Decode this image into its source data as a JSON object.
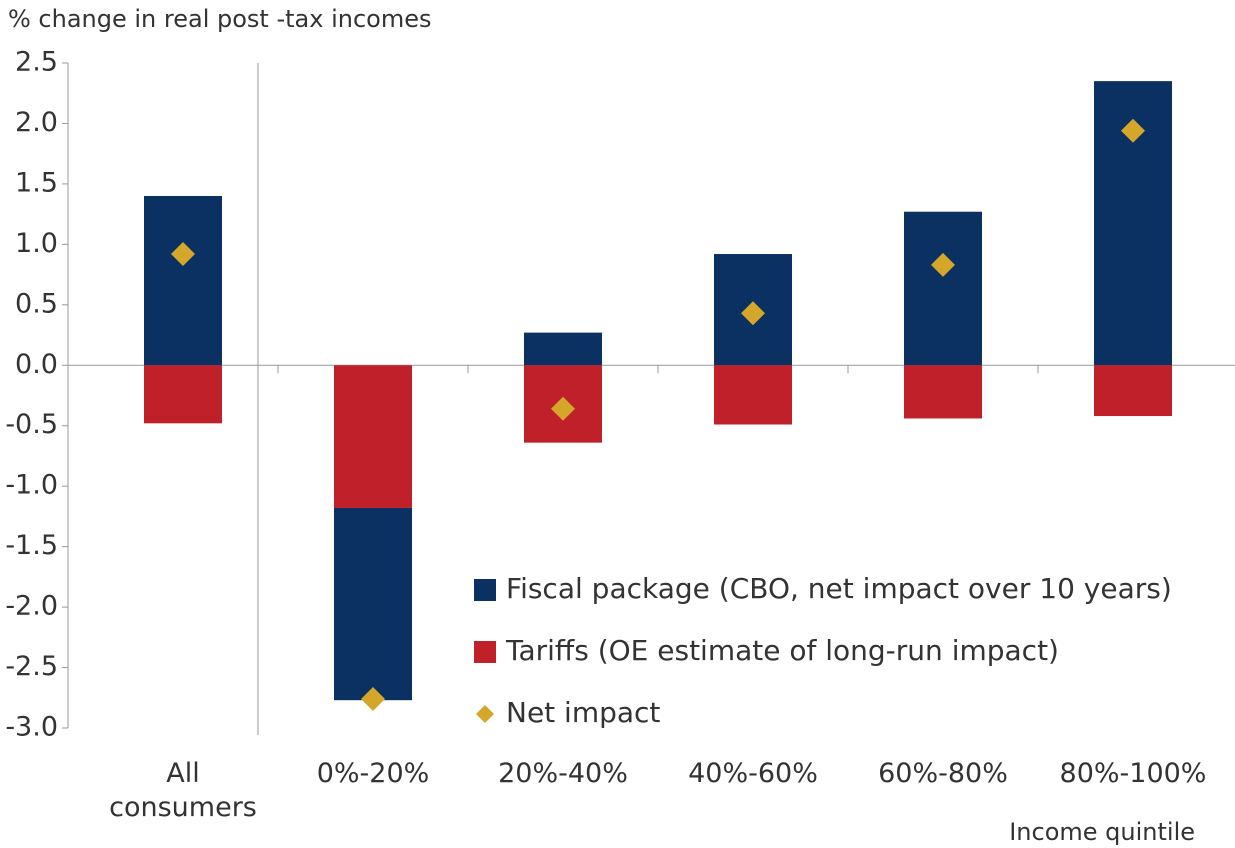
{
  "chart_data": {
    "type": "bar",
    "stacked": true,
    "y_label": "% change in real post -tax incomes",
    "x_label": "Income quintile",
    "categories": [
      "All consumers",
      "0%-20%",
      "20%-40%",
      "40%-60%",
      "60%-80%",
      "80%-100%"
    ],
    "series": [
      {
        "name": "Fiscal package (CBO, net impact over 10 years)",
        "color": "#0a3161",
        "values": [
          1.4,
          -1.59,
          0.27,
          0.92,
          1.27,
          2.35
        ]
      },
      {
        "name": "Tariffs (OE estimate of long-run impact)",
        "color": "#c0202a",
        "values": [
          -0.48,
          -1.18,
          -0.64,
          -0.49,
          -0.44,
          -0.42
        ]
      },
      {
        "name": "Net impact",
        "type": "scatter",
        "marker": "diamond",
        "color": "#d4a62a",
        "values": [
          0.92,
          -2.76,
          -0.36,
          0.43,
          0.83,
          1.94
        ]
      }
    ],
    "ylim": [
      -3.0,
      2.5
    ],
    "yticks": [
      2.5,
      {
        "value": 2.0,
        "label": "2.0"
      },
      1.5,
      {
        "value": 1.0,
        "label": "1.0"
      },
      0.5,
      {
        "value": 0.0,
        "label": "0.0"
      },
      -0.5,
      {
        "value": -1.0,
        "label": "-1.0"
      },
      -1.5,
      {
        "value": -2.0,
        "label": "-2.0"
      },
      -2.5,
      {
        "value": -3.0,
        "label": "-3.0"
      }
    ],
    "grid": false,
    "legend": "lower right"
  }
}
